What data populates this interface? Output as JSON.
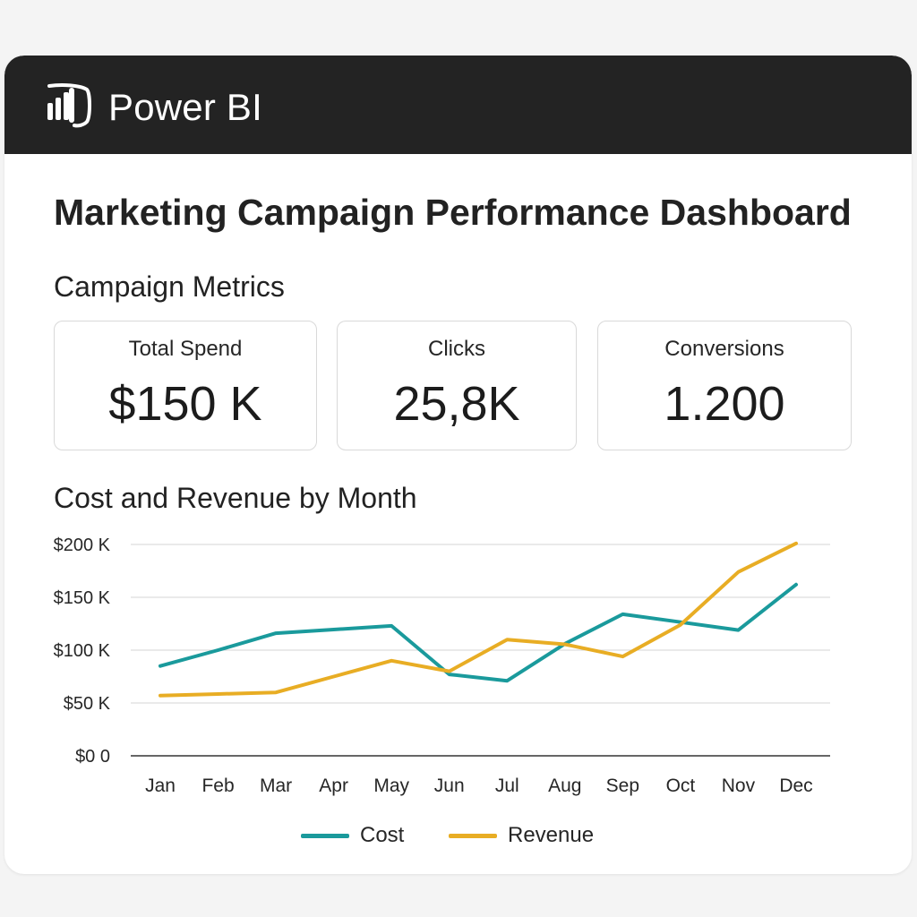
{
  "app": {
    "brand": "Power BI"
  },
  "page": {
    "title": "Marketing Campaign Performance Dashboard"
  },
  "metrics": {
    "section_title": "Campaign Metrics",
    "cards": [
      {
        "label": "Total Spend",
        "value": "$150 K"
      },
      {
        "label": "Clicks",
        "value": "25,8K"
      },
      {
        "label": "Conversions",
        "value": "1.200"
      }
    ]
  },
  "colors": {
    "cost": "#1a9a9c",
    "revenue": "#e8ad24",
    "titlebar": "#232323"
  },
  "icons": {
    "logo": "power-bi-logo"
  },
  "chart_data": {
    "type": "line",
    "title": "Cost and Revenue by Month",
    "categories": [
      "Jan",
      "Feb",
      "Mar",
      "Apr",
      "May",
      "Jun",
      "Jul",
      "Aug",
      "Sep",
      "Oct",
      "Nov",
      "Dec"
    ],
    "series": [
      {
        "name": "Cost",
        "color": "#1a9a9c",
        "values": [
          85,
          100,
          116,
          119.5,
          123,
          77,
          71,
          106,
          134,
          126.5,
          119,
          162
        ]
      },
      {
        "name": "Revenue",
        "color": "#e8ad24",
        "values": [
          57,
          58.5,
          60,
          75,
          90,
          80,
          110,
          105.5,
          94,
          124,
          174,
          201
        ]
      }
    ],
    "y_ticks": [
      "$0 0",
      "$50 K",
      "$100 K",
      "$150 K",
      "$200 K"
    ],
    "y_tick_values": [
      0,
      50,
      100,
      150,
      200
    ],
    "ylim": [
      0,
      200
    ],
    "grid": true,
    "legend_position": "bottom-center"
  }
}
